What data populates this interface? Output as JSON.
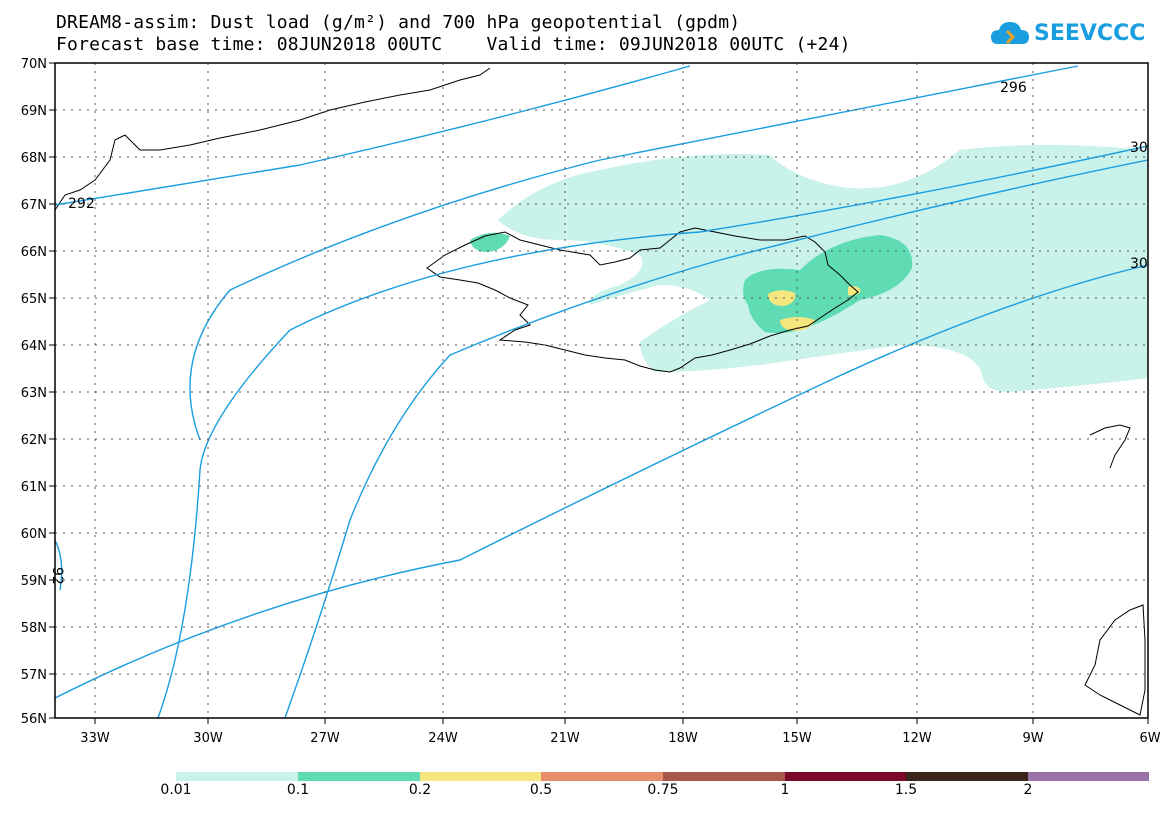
{
  "title_line1": "DREAM8-assim: Dust load (g/m²) and 700 hPa geopotential (gpdm)",
  "title_line2": "Forecast base time: 08JUN2018 00UTC    Valid time: 09JUN2018 00UTC (+24)",
  "logo": {
    "text": "SEEVCCC",
    "icon": "cloud-logo-icon",
    "color": "#1a9ee0"
  },
  "map": {
    "lat_labels": [
      "70N",
      "69N",
      "68N",
      "67N",
      "66N",
      "65N",
      "64N",
      "63N",
      "62N",
      "61N",
      "60N",
      "59N",
      "58N",
      "57N",
      "56N"
    ],
    "lon_labels": [
      "33W",
      "30W",
      "27W",
      "24W",
      "21W",
      "18W",
      "15W",
      "12W",
      "9W",
      "6W"
    ],
    "contour_labels": [
      "292",
      "296",
      "30",
      "30",
      "92"
    ],
    "contour_color": "#1a9ee0"
  },
  "colorbar": {
    "colors": [
      "#c8f2ea",
      "#5fdcb4",
      "#f6e67e",
      "#e88e6a",
      "#a8574c",
      "#7b0a2a",
      "#3a2618",
      "#9b72a8"
    ],
    "labels": [
      "0.01",
      "0.1",
      "0.2",
      "0.5",
      "0.75",
      "1",
      "1.5",
      "2"
    ]
  }
}
